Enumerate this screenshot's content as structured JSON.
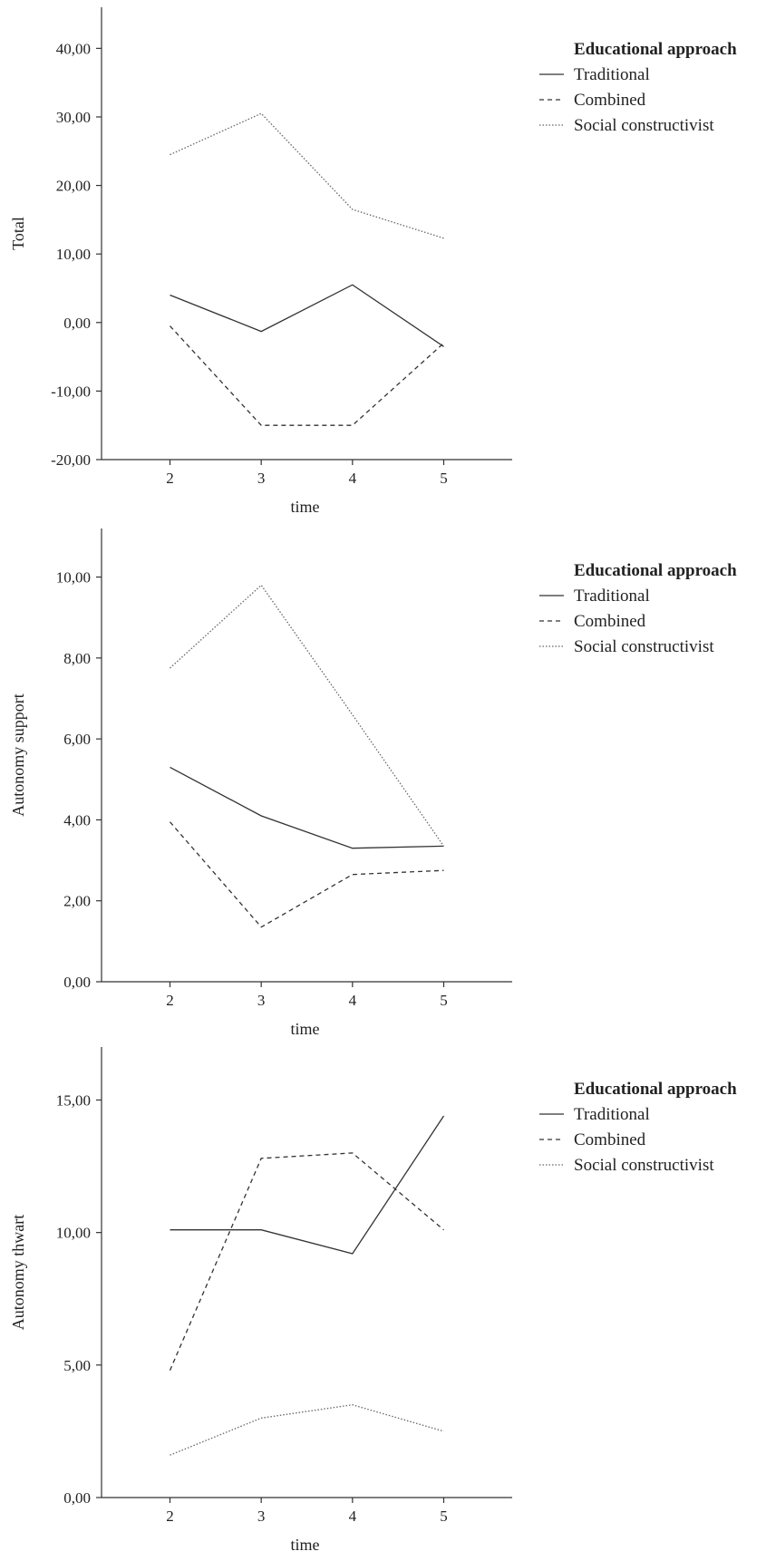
{
  "chart_data": [
    {
      "type": "line",
      "xlabel": "time",
      "ylabel": "Total",
      "x": [
        2,
        3,
        4,
        5
      ],
      "xlim": [
        1.25,
        5.75
      ],
      "ylim": [
        -20,
        46
      ],
      "yticks": [
        -20,
        -10,
        0,
        10,
        20,
        30,
        40
      ],
      "ytick_labels": [
        "-20,00",
        "-10,00",
        "0,00",
        "10,00",
        "20,00",
        "30,00",
        "40,00"
      ],
      "legend_title": "Educational approach",
      "legend_position": "top-right",
      "grid": false,
      "series": [
        {
          "name": "Traditional",
          "style": "solid",
          "values": [
            4.0,
            -1.3,
            5.5,
            -3.5
          ]
        },
        {
          "name": "Combined",
          "style": "dashed",
          "values": [
            -0.5,
            -15.0,
            -15.0,
            -3.0
          ]
        },
        {
          "name": "Social constructivist",
          "style": "dotted",
          "values": [
            24.5,
            30.5,
            16.5,
            12.3
          ]
        }
      ]
    },
    {
      "type": "line",
      "xlabel": "time",
      "ylabel": "Autonomy support",
      "x": [
        2,
        3,
        4,
        5
      ],
      "xlim": [
        1.25,
        5.75
      ],
      "ylim": [
        0,
        11.2
      ],
      "yticks": [
        0,
        2,
        4,
        6,
        8,
        10
      ],
      "ytick_labels": [
        "0,00",
        "2,00",
        "4,00",
        "6,00",
        "8,00",
        "10,00"
      ],
      "legend_title": "Educational approach",
      "legend_position": "top-right",
      "grid": false,
      "series": [
        {
          "name": "Traditional",
          "style": "solid",
          "values": [
            5.3,
            4.1,
            3.3,
            3.35
          ]
        },
        {
          "name": "Combined",
          "style": "dashed",
          "values": [
            3.95,
            1.35,
            2.65,
            2.75
          ]
        },
        {
          "name": "Social constructivist",
          "style": "dotted",
          "values": [
            7.75,
            9.8,
            6.6,
            3.35
          ]
        }
      ]
    },
    {
      "type": "line",
      "xlabel": "time",
      "ylabel": "Autonomy thwart",
      "x": [
        2,
        3,
        4,
        5
      ],
      "xlim": [
        1.25,
        5.75
      ],
      "ylim": [
        0,
        17
      ],
      "yticks": [
        0,
        5,
        10,
        15
      ],
      "ytick_labels": [
        "0,00",
        "5,00",
        "10,00",
        "15,00"
      ],
      "legend_title": "Educational approach",
      "legend_position": "top-right",
      "grid": false,
      "series": [
        {
          "name": "Traditional",
          "style": "solid",
          "values": [
            10.1,
            10.1,
            9.2,
            14.4
          ]
        },
        {
          "name": "Combined",
          "style": "dashed",
          "values": [
            4.8,
            12.8,
            13.0,
            10.1
          ]
        },
        {
          "name": "Social constructivist",
          "style": "dotted",
          "values": [
            1.6,
            3.0,
            3.5,
            2.5
          ]
        }
      ]
    }
  ]
}
